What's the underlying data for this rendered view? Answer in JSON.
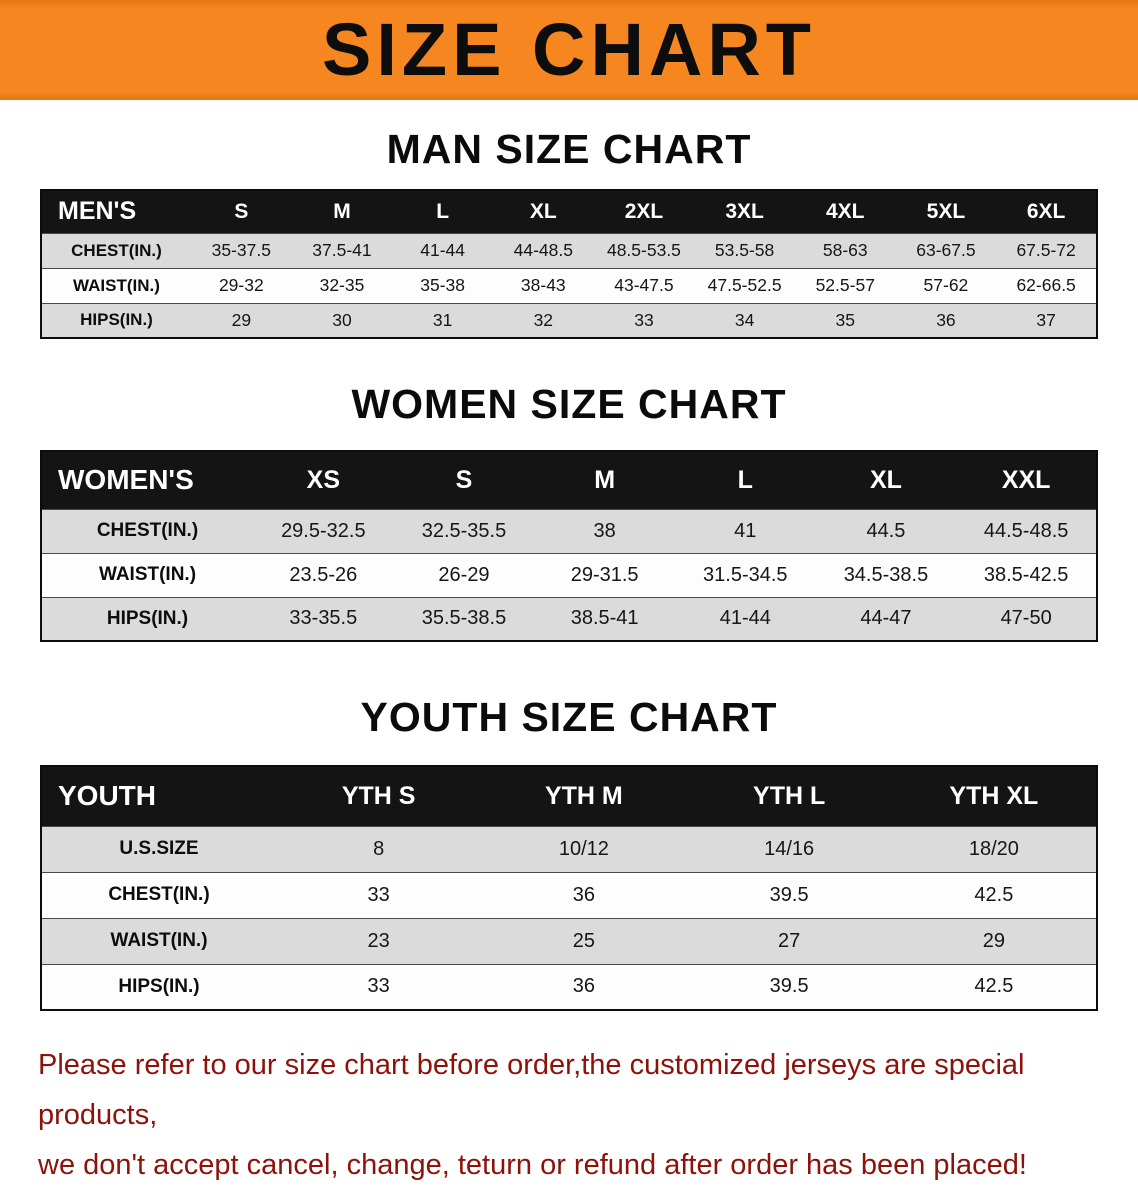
{
  "banner": {
    "title": "SIZE CHART"
  },
  "colors": {
    "banner_bg": "#f6861f",
    "header_bg": "#141414",
    "row_gray": "#dbdbdb",
    "footer_red": "#8c120b"
  },
  "sections": [
    {
      "id": "men",
      "heading": "MAN SIZE CHART",
      "columns": [
        "MEN'S",
        "S",
        "M",
        "L",
        "XL",
        "2XL",
        "3XL",
        "4XL",
        "5XL",
        "6XL"
      ],
      "rows": [
        {
          "label": "CHEST(IN.)",
          "values": [
            "35-37.5",
            "37.5-41",
            "41-44",
            "44-48.5",
            "48.5-53.5",
            "53.5-58",
            "58-63",
            "63-67.5",
            "67.5-72"
          ]
        },
        {
          "label": "WAIST(IN.)",
          "values": [
            "29-32",
            "32-35",
            "35-38",
            "38-43",
            "43-47.5",
            "47.5-52.5",
            "52.5-57",
            "57-62",
            "62-66.5"
          ]
        },
        {
          "label": "HIPS(IN.)",
          "values": [
            "29",
            "30",
            "31",
            "32",
            "33",
            "34",
            "35",
            "36",
            "37"
          ]
        }
      ]
    },
    {
      "id": "women",
      "heading": "WOMEN SIZE CHART",
      "columns": [
        "WOMEN'S",
        "XS",
        "S",
        "M",
        "L",
        "XL",
        "XXL"
      ],
      "rows": [
        {
          "label": "CHEST(IN.)",
          "values": [
            "29.5-32.5",
            "32.5-35.5",
            "38",
            "41",
            "44.5",
            "44.5-48.5"
          ]
        },
        {
          "label": "WAIST(IN.)",
          "values": [
            "23.5-26",
            "26-29",
            "29-31.5",
            "31.5-34.5",
            "34.5-38.5",
            "38.5-42.5"
          ]
        },
        {
          "label": "HIPS(IN.)",
          "values": [
            "33-35.5",
            "35.5-38.5",
            "38.5-41",
            "41-44",
            "44-47",
            "47-50"
          ]
        }
      ]
    },
    {
      "id": "youth",
      "heading": "YOUTH SIZE CHART",
      "columns": [
        "YOUTH",
        "YTH S",
        "YTH M",
        "YTH L",
        "YTH XL"
      ],
      "rows": [
        {
          "label": "U.S.SIZE",
          "values": [
            "8",
            "10/12",
            "14/16",
            "18/20"
          ]
        },
        {
          "label": "CHEST(IN.)",
          "values": [
            "33",
            "36",
            "39.5",
            "42.5"
          ]
        },
        {
          "label": "WAIST(IN.)",
          "values": [
            "23",
            "25",
            "27",
            "29"
          ]
        },
        {
          "label": "HIPS(IN.)",
          "values": [
            "33",
            "36",
            "39.5",
            "42.5"
          ]
        }
      ]
    }
  ],
  "footer": {
    "line1": "Please refer to our size chart before order,the customized jerseys are special products,",
    "line2": "we don't accept cancel, change, teturn or refund after order has been placed!"
  }
}
